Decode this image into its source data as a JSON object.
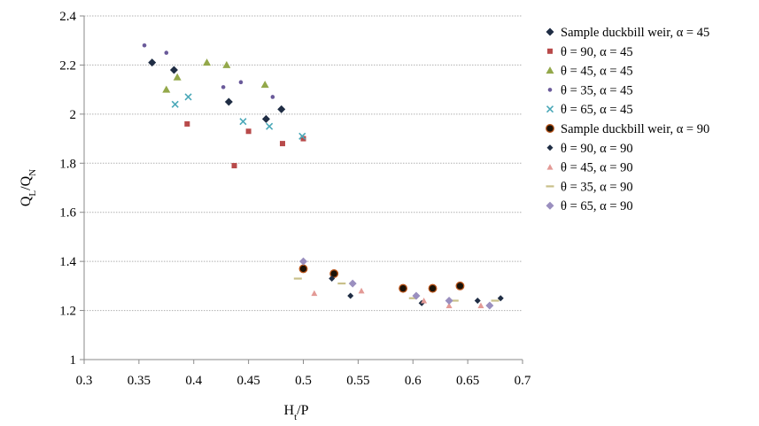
{
  "chart_data": {
    "type": "scatter",
    "title": "",
    "xlabel": "Ht/P",
    "ylabel": "QL/QN",
    "xlim": [
      0.3,
      0.7
    ],
    "ylim": [
      1,
      2.4
    ],
    "x_ticks": [
      "0.3",
      "0.35",
      "0.4",
      "0.45",
      "0.5",
      "0.55",
      "0.6",
      "0.65",
      "0.7"
    ],
    "y_ticks": [
      "1",
      "1.2",
      "1.4",
      "1.6",
      "1.8",
      "2",
      "2.2",
      "2.4"
    ],
    "grid": "horizontal",
    "legend_position": "right",
    "series": [
      {
        "name": "Sample duckbill weir, α = 45",
        "marker": "diamond",
        "color": "#1f2d44",
        "points": [
          [
            0.362,
            2.21
          ],
          [
            0.382,
            2.18
          ],
          [
            0.432,
            2.05
          ],
          [
            0.466,
            1.98
          ],
          [
            0.48,
            2.02
          ]
        ]
      },
      {
        "name": "θ = 90, α = 45",
        "marker": "square",
        "color": "#b84a4a",
        "points": [
          [
            0.394,
            1.96
          ],
          [
            0.437,
            1.79
          ],
          [
            0.45,
            1.93
          ],
          [
            0.481,
            1.88
          ],
          [
            0.5,
            1.9
          ]
        ]
      },
      {
        "name": "θ = 45, α = 45",
        "marker": "triangle",
        "color": "#93a84a",
        "points": [
          [
            0.375,
            2.1
          ],
          [
            0.385,
            2.15
          ],
          [
            0.412,
            2.21
          ],
          [
            0.43,
            2.2
          ],
          [
            0.465,
            2.12
          ]
        ]
      },
      {
        "name": "θ = 35, α = 45",
        "marker": "circle",
        "color": "#6a5a9a",
        "points": [
          [
            0.355,
            2.28
          ],
          [
            0.375,
            2.25
          ],
          [
            0.427,
            2.11
          ],
          [
            0.443,
            2.13
          ],
          [
            0.472,
            2.07
          ]
        ]
      },
      {
        "name": "θ = 65, α = 45",
        "marker": "x",
        "color": "#4aa8b8",
        "points": [
          [
            0.383,
            2.04
          ],
          [
            0.395,
            2.07
          ],
          [
            0.445,
            1.97
          ],
          [
            0.469,
            1.95
          ],
          [
            0.499,
            1.91
          ]
        ]
      },
      {
        "name": "Sample duckbill weir, α = 90",
        "marker": "circle-big",
        "color": "#1a1208",
        "points": [
          [
            0.5,
            1.37
          ],
          [
            0.528,
            1.35
          ],
          [
            0.591,
            1.29
          ],
          [
            0.618,
            1.29
          ],
          [
            0.643,
            1.3
          ]
        ]
      },
      {
        "name": "θ = 90, α = 90",
        "marker": "diamond-small",
        "color": "#1f2d44",
        "points": [
          [
            0.526,
            1.33
          ],
          [
            0.543,
            1.26
          ],
          [
            0.608,
            1.23
          ],
          [
            0.659,
            1.24
          ],
          [
            0.68,
            1.25
          ]
        ]
      },
      {
        "name": "θ = 45, α = 90",
        "marker": "triangle-small",
        "color": "#e39a96",
        "points": [
          [
            0.51,
            1.27
          ],
          [
            0.553,
            1.28
          ],
          [
            0.61,
            1.24
          ],
          [
            0.633,
            1.22
          ],
          [
            0.662,
            1.22
          ]
        ]
      },
      {
        "name": "θ = 35, α = 90",
        "marker": "dash",
        "color": "#c9c08a",
        "points": [
          [
            0.495,
            1.33
          ],
          [
            0.535,
            1.31
          ],
          [
            0.6,
            1.25
          ],
          [
            0.638,
            1.24
          ],
          [
            0.675,
            1.24
          ]
        ]
      },
      {
        "name": "θ = 65, α = 90",
        "marker": "diamond-light",
        "color": "#9a8fbf",
        "points": [
          [
            0.5,
            1.4
          ],
          [
            0.545,
            1.31
          ],
          [
            0.603,
            1.26
          ],
          [
            0.633,
            1.24
          ],
          [
            0.67,
            1.22
          ]
        ]
      }
    ]
  }
}
